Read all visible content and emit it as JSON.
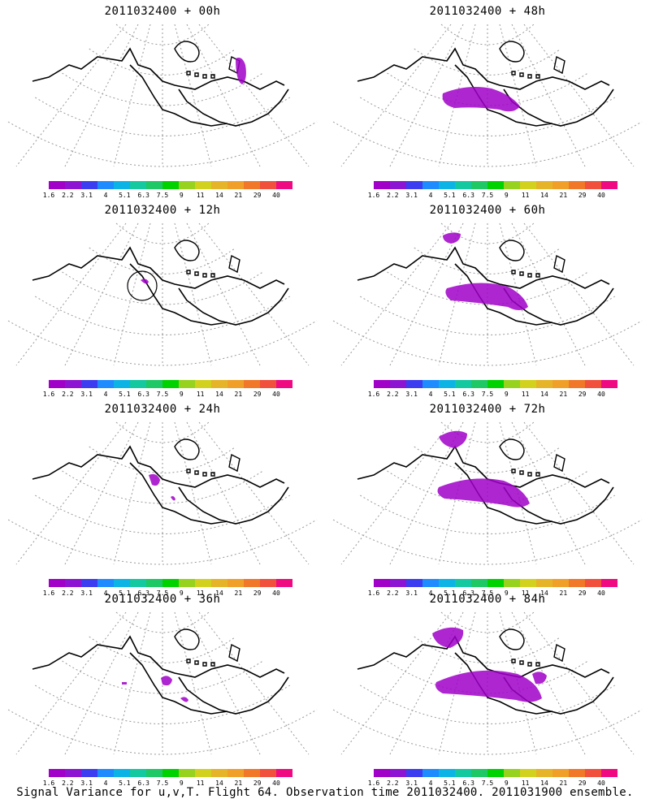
{
  "panels": [
    {
      "title": "2011032400 + 00h",
      "blobs": "p00"
    },
    {
      "title": "2011032400 + 48h",
      "blobs": "p48"
    },
    {
      "title": "2011032400 + 12h",
      "blobs": "p12"
    },
    {
      "title": "2011032400 + 60h",
      "blobs": "p60"
    },
    {
      "title": "2011032400 + 24h",
      "blobs": "p24"
    },
    {
      "title": "2011032400 + 72h",
      "blobs": "p72"
    },
    {
      "title": "2011032400 + 36h",
      "blobs": "p36"
    },
    {
      "title": "2011032400 + 84h",
      "blobs": "p84"
    }
  ],
  "colorbar": {
    "colors": [
      "#a000c8",
      "#8c14d2",
      "#3c3cf0",
      "#1e8cff",
      "#0cb4e6",
      "#14c8a0",
      "#1ec864",
      "#00d200",
      "#96d21e",
      "#d2d21e",
      "#e6b428",
      "#f0a028",
      "#f07828",
      "#f0503c",
      "#f00a82"
    ],
    "labels": [
      "1.6",
      "2.2",
      "3.1",
      "4",
      "5.1",
      "6.3",
      "7.5",
      "9",
      "11",
      "14",
      "21",
      "29",
      "40"
    ]
  },
  "caption": "Signal Variance for u,v,T. Flight 64. Observation time 2011032400. 2011031900 ensemble."
}
